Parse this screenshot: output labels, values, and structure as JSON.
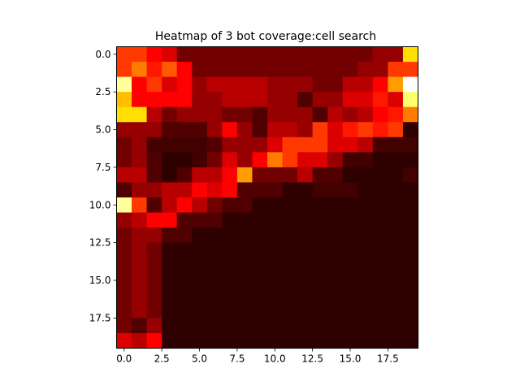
{
  "chart_data": {
    "type": "heatmap",
    "title": "Heatmap of 3 bot coverage:cell search",
    "colormap": "hot",
    "rows": 20,
    "cols": 20,
    "vmin": 0,
    "vmax": 10,
    "x_ticks": [
      0,
      2.5,
      5,
      7.5,
      10,
      12.5,
      15,
      17.5
    ],
    "x_tick_labels": [
      "0.0",
      "2.5",
      "5.0",
      "7.5",
      "10.0",
      "12.5",
      "15.0",
      "17.5"
    ],
    "y_ticks": [
      0,
      2.5,
      5,
      7.5,
      10,
      12.5,
      15,
      17.5
    ],
    "y_tick_labels": [
      "0.0",
      "2.5",
      "5.0",
      "7.5",
      "10.0",
      "12.5",
      "15.0",
      "17.5"
    ],
    "grid": false,
    "values": [
      [
        4.5,
        4.5,
        3.5,
        3.0,
        1.5,
        1.5,
        1.5,
        1.5,
        1.5,
        1.5,
        1.5,
        1.5,
        1.5,
        1.5,
        1.5,
        1.5,
        1.5,
        2.0,
        2.0,
        7.0
      ],
      [
        4.5,
        5.5,
        4.0,
        5.0,
        3.5,
        1.5,
        1.5,
        1.5,
        1.5,
        1.5,
        1.5,
        1.5,
        1.5,
        1.5,
        1.5,
        1.5,
        2.0,
        2.0,
        4.5,
        4.5
      ],
      [
        9.0,
        3.5,
        4.5,
        3.0,
        3.5,
        2.0,
        2.5,
        2.5,
        2.5,
        2.5,
        2.0,
        2.0,
        2.0,
        1.5,
        1.5,
        2.5,
        2.5,
        3.5,
        6.0,
        10.0
      ],
      [
        6.5,
        3.5,
        3.5,
        3.5,
        3.5,
        2.0,
        2.0,
        2.5,
        2.5,
        2.5,
        2.0,
        2.0,
        1.0,
        2.0,
        2.0,
        3.0,
        3.0,
        4.0,
        3.0,
        8.5
      ],
      [
        7.0,
        7.0,
        2.5,
        1.5,
        2.0,
        2.0,
        2.0,
        1.5,
        1.5,
        1.0,
        2.0,
        2.0,
        2.0,
        1.0,
        2.5,
        2.0,
        2.5,
        3.5,
        4.0,
        5.5
      ],
      [
        2.0,
        2.0,
        2.0,
        1.0,
        1.0,
        1.0,
        2.0,
        3.5,
        2.0,
        1.0,
        2.5,
        2.5,
        2.0,
        4.5,
        3.0,
        4.0,
        4.5,
        4.0,
        4.5,
        0.5
      ],
      [
        1.5,
        2.0,
        0.8,
        0.8,
        0.8,
        0.8,
        1.0,
        2.0,
        2.0,
        2.0,
        3.0,
        4.5,
        4.5,
        4.5,
        3.0,
        3.0,
        2.5,
        0.8,
        0.8,
        0.8
      ],
      [
        1.5,
        2.0,
        1.0,
        0.5,
        0.5,
        0.8,
        1.5,
        3.0,
        2.0,
        3.5,
        5.5,
        4.5,
        3.0,
        3.0,
        2.0,
        0.8,
        0.8,
        0.5,
        0.5,
        0.5
      ],
      [
        2.5,
        2.5,
        1.0,
        0.5,
        1.0,
        2.5,
        2.5,
        3.5,
        6.0,
        1.5,
        1.5,
        1.5,
        2.5,
        1.0,
        1.0,
        0.5,
        0.5,
        0.5,
        0.5,
        0.8
      ],
      [
        1.0,
        2.0,
        2.0,
        2.5,
        2.5,
        3.5,
        3.0,
        3.5,
        1.0,
        1.0,
        1.0,
        0.5,
        0.5,
        0.8,
        0.8,
        0.8,
        0.5,
        0.5,
        0.5,
        0.5
      ],
      [
        9.0,
        4.5,
        1.0,
        2.5,
        3.5,
        2.5,
        1.5,
        1.0,
        1.0,
        0.5,
        0.5,
        0.5,
        0.5,
        0.5,
        0.5,
        0.5,
        0.5,
        0.5,
        0.5,
        0.5
      ],
      [
        2.0,
        2.5,
        3.5,
        3.5,
        1.0,
        1.0,
        1.0,
        0.5,
        0.5,
        0.5,
        0.5,
        0.5,
        0.5,
        0.5,
        0.5,
        0.5,
        0.5,
        0.5,
        0.5,
        0.5
      ],
      [
        1.5,
        2.0,
        2.0,
        1.0,
        1.0,
        0.5,
        0.5,
        0.5,
        0.5,
        0.5,
        0.5,
        0.5,
        0.5,
        0.5,
        0.5,
        0.5,
        0.5,
        0.5,
        0.5,
        0.5
      ],
      [
        1.5,
        2.0,
        1.5,
        0.5,
        0.5,
        0.5,
        0.5,
        0.5,
        0.5,
        0.5,
        0.5,
        0.5,
        0.5,
        0.5,
        0.5,
        0.5,
        0.5,
        0.5,
        0.5,
        0.5
      ],
      [
        1.5,
        2.0,
        1.5,
        0.5,
        0.5,
        0.5,
        0.5,
        0.5,
        0.5,
        0.5,
        0.5,
        0.5,
        0.5,
        0.5,
        0.5,
        0.5,
        0.5,
        0.5,
        0.5,
        0.5
      ],
      [
        1.5,
        2.0,
        1.5,
        0.5,
        0.5,
        0.5,
        0.5,
        0.5,
        0.5,
        0.5,
        0.5,
        0.5,
        0.5,
        0.5,
        0.5,
        0.5,
        0.5,
        0.5,
        0.5,
        0.5
      ],
      [
        1.5,
        2.0,
        1.5,
        0.5,
        0.5,
        0.5,
        0.5,
        0.5,
        0.5,
        0.5,
        0.5,
        0.5,
        0.5,
        0.5,
        0.5,
        0.5,
        0.5,
        0.5,
        0.5,
        0.5
      ],
      [
        1.5,
        2.0,
        1.5,
        0.5,
        0.5,
        0.5,
        0.5,
        0.5,
        0.5,
        0.5,
        0.5,
        0.5,
        0.5,
        0.5,
        0.5,
        0.5,
        0.5,
        0.5,
        0.5,
        0.5
      ],
      [
        1.5,
        1.0,
        2.0,
        0.5,
        0.5,
        0.5,
        0.5,
        0.5,
        0.5,
        0.5,
        0.5,
        0.5,
        0.5,
        0.5,
        0.5,
        0.5,
        0.5,
        0.5,
        0.5,
        0.5
      ],
      [
        3.0,
        2.5,
        3.5,
        0.5,
        0.5,
        0.5,
        0.5,
        0.5,
        0.5,
        0.5,
        0.5,
        0.5,
        0.5,
        0.5,
        0.5,
        0.5,
        0.5,
        0.5,
        0.5,
        0.5
      ]
    ]
  }
}
